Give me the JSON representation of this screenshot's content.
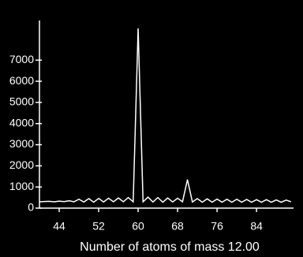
{
  "chart_data": {
    "type": "line",
    "x_label": "Number of atoms of mass 12.00",
    "x": [
      40,
      41,
      42,
      43,
      44,
      45,
      46,
      47,
      48,
      49,
      50,
      51,
      52,
      53,
      54,
      55,
      56,
      57,
      58,
      59,
      60,
      61,
      62,
      63,
      64,
      65,
      66,
      67,
      68,
      69,
      70,
      71,
      72,
      73,
      74,
      75,
      76,
      77,
      78,
      79,
      80,
      81,
      82,
      83,
      84,
      85,
      86,
      87,
      88,
      89,
      90,
      91
    ],
    "series": [
      {
        "color": "#ffffff",
        "values": [
          300,
          310,
          320,
          300,
          330,
          310,
          350,
          300,
          420,
          290,
          450,
          280,
          460,
          290,
          470,
          300,
          480,
          300,
          500,
          300,
          8500,
          300,
          520,
          290,
          500,
          280,
          480,
          290,
          470,
          300,
          1350,
          290,
          450,
          280,
          440,
          280,
          430,
          280,
          420,
          280,
          420,
          280,
          410,
          280,
          400,
          280,
          400,
          280,
          390,
          280,
          380,
          300
        ]
      }
    ],
    "xlim": [
      40,
      91.5
    ],
    "ylim": [
      0,
      8800
    ],
    "xticks": [
      44,
      52,
      60,
      68,
      76,
      84
    ],
    "yticks": [
      0,
      1000,
      2000,
      3000,
      4000,
      5000,
      6000,
      7000
    ]
  }
}
